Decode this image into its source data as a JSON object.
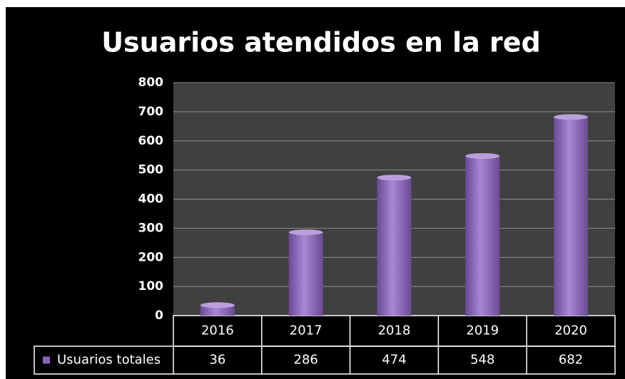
{
  "chart_data": {
    "type": "bar",
    "title": "Usuarios atendidos en la red",
    "categories": [
      "2016",
      "2017",
      "2018",
      "2019",
      "2020"
    ],
    "series": [
      {
        "name": "Usuarios totales",
        "color": "#8a64b8",
        "values": [
          36,
          286,
          474,
          548,
          682
        ]
      }
    ],
    "ylim": [
      0,
      800
    ],
    "yticks": [
      0,
      100,
      200,
      300,
      400,
      500,
      600,
      700,
      800
    ],
    "grid": true,
    "data_table": true
  }
}
